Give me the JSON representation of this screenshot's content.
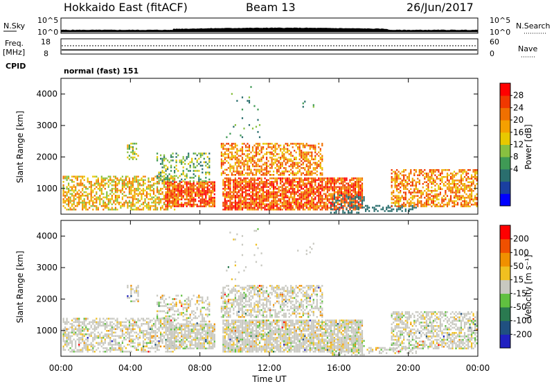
{
  "header": {
    "title": "Hokkaido East (fitACF)",
    "beam": "Beam 13",
    "date": "26/Jun/2017"
  },
  "noise_panel": {
    "left_label": "N.Sky",
    "right_label": "N.Search",
    "left_ticks": [
      "10^5",
      "10^0"
    ],
    "right_ticks": [
      "10^5",
      "10^0"
    ]
  },
  "freq_panel": {
    "left_label_line1": "Freq.",
    "left_label_line2": "[MHz]",
    "left_ticks": [
      "18",
      "8"
    ],
    "right_ticks": [
      "60",
      "0"
    ],
    "right_label": "Nave",
    "cpid_label": "CPID",
    "cpid_value": "normal (fast) 151"
  },
  "chart_data": [
    {
      "type": "heatmap",
      "parameter": "power",
      "ylabel": "Slant Range [km]",
      "yticks": [
        1000,
        2000,
        3000,
        4000
      ],
      "ylim": [
        180,
        4500
      ],
      "x_ticks": [
        "00:00",
        "04:00",
        "08:00",
        "12:00",
        "16:00",
        "20:00",
        "00:00"
      ],
      "xlim_hours": [
        0,
        24
      ],
      "colorbar": {
        "label": "Power [dB]",
        "ticks": [
          "28",
          "24",
          "20",
          "16",
          "12",
          "8",
          "4"
        ],
        "colors": [
          "#0000ff",
          "#1a3fa0",
          "#2a6e6e",
          "#3f9a55",
          "#88c040",
          "#e8c800",
          "#f5a000",
          "#f07000",
          "#f03800",
          "#ff0000"
        ]
      }
    },
    {
      "type": "heatmap",
      "parameter": "velocity",
      "ylabel": "Slant Range [km]",
      "yticks": [
        1000,
        2000,
        3000,
        4000
      ],
      "ylim": [
        180,
        4500
      ],
      "x_ticks": [
        "00:00",
        "04:00",
        "08:00",
        "12:00",
        "16:00",
        "20:00",
        "00:00"
      ],
      "xlabel": "Time UT",
      "xlim_hours": [
        0,
        24
      ],
      "colorbar": {
        "label": "Velocity [m s⁻¹]",
        "ticks": [
          "200",
          "100",
          "50",
          "15",
          "-15",
          "-50",
          "-100",
          "-200"
        ],
        "colors": [
          "#2020c0",
          "#205080",
          "#2a7a50",
          "#60c040",
          "#c8c8c0",
          "#f0c020",
          "#f09000",
          "#f05000",
          "#ff0000"
        ]
      }
    }
  ]
}
